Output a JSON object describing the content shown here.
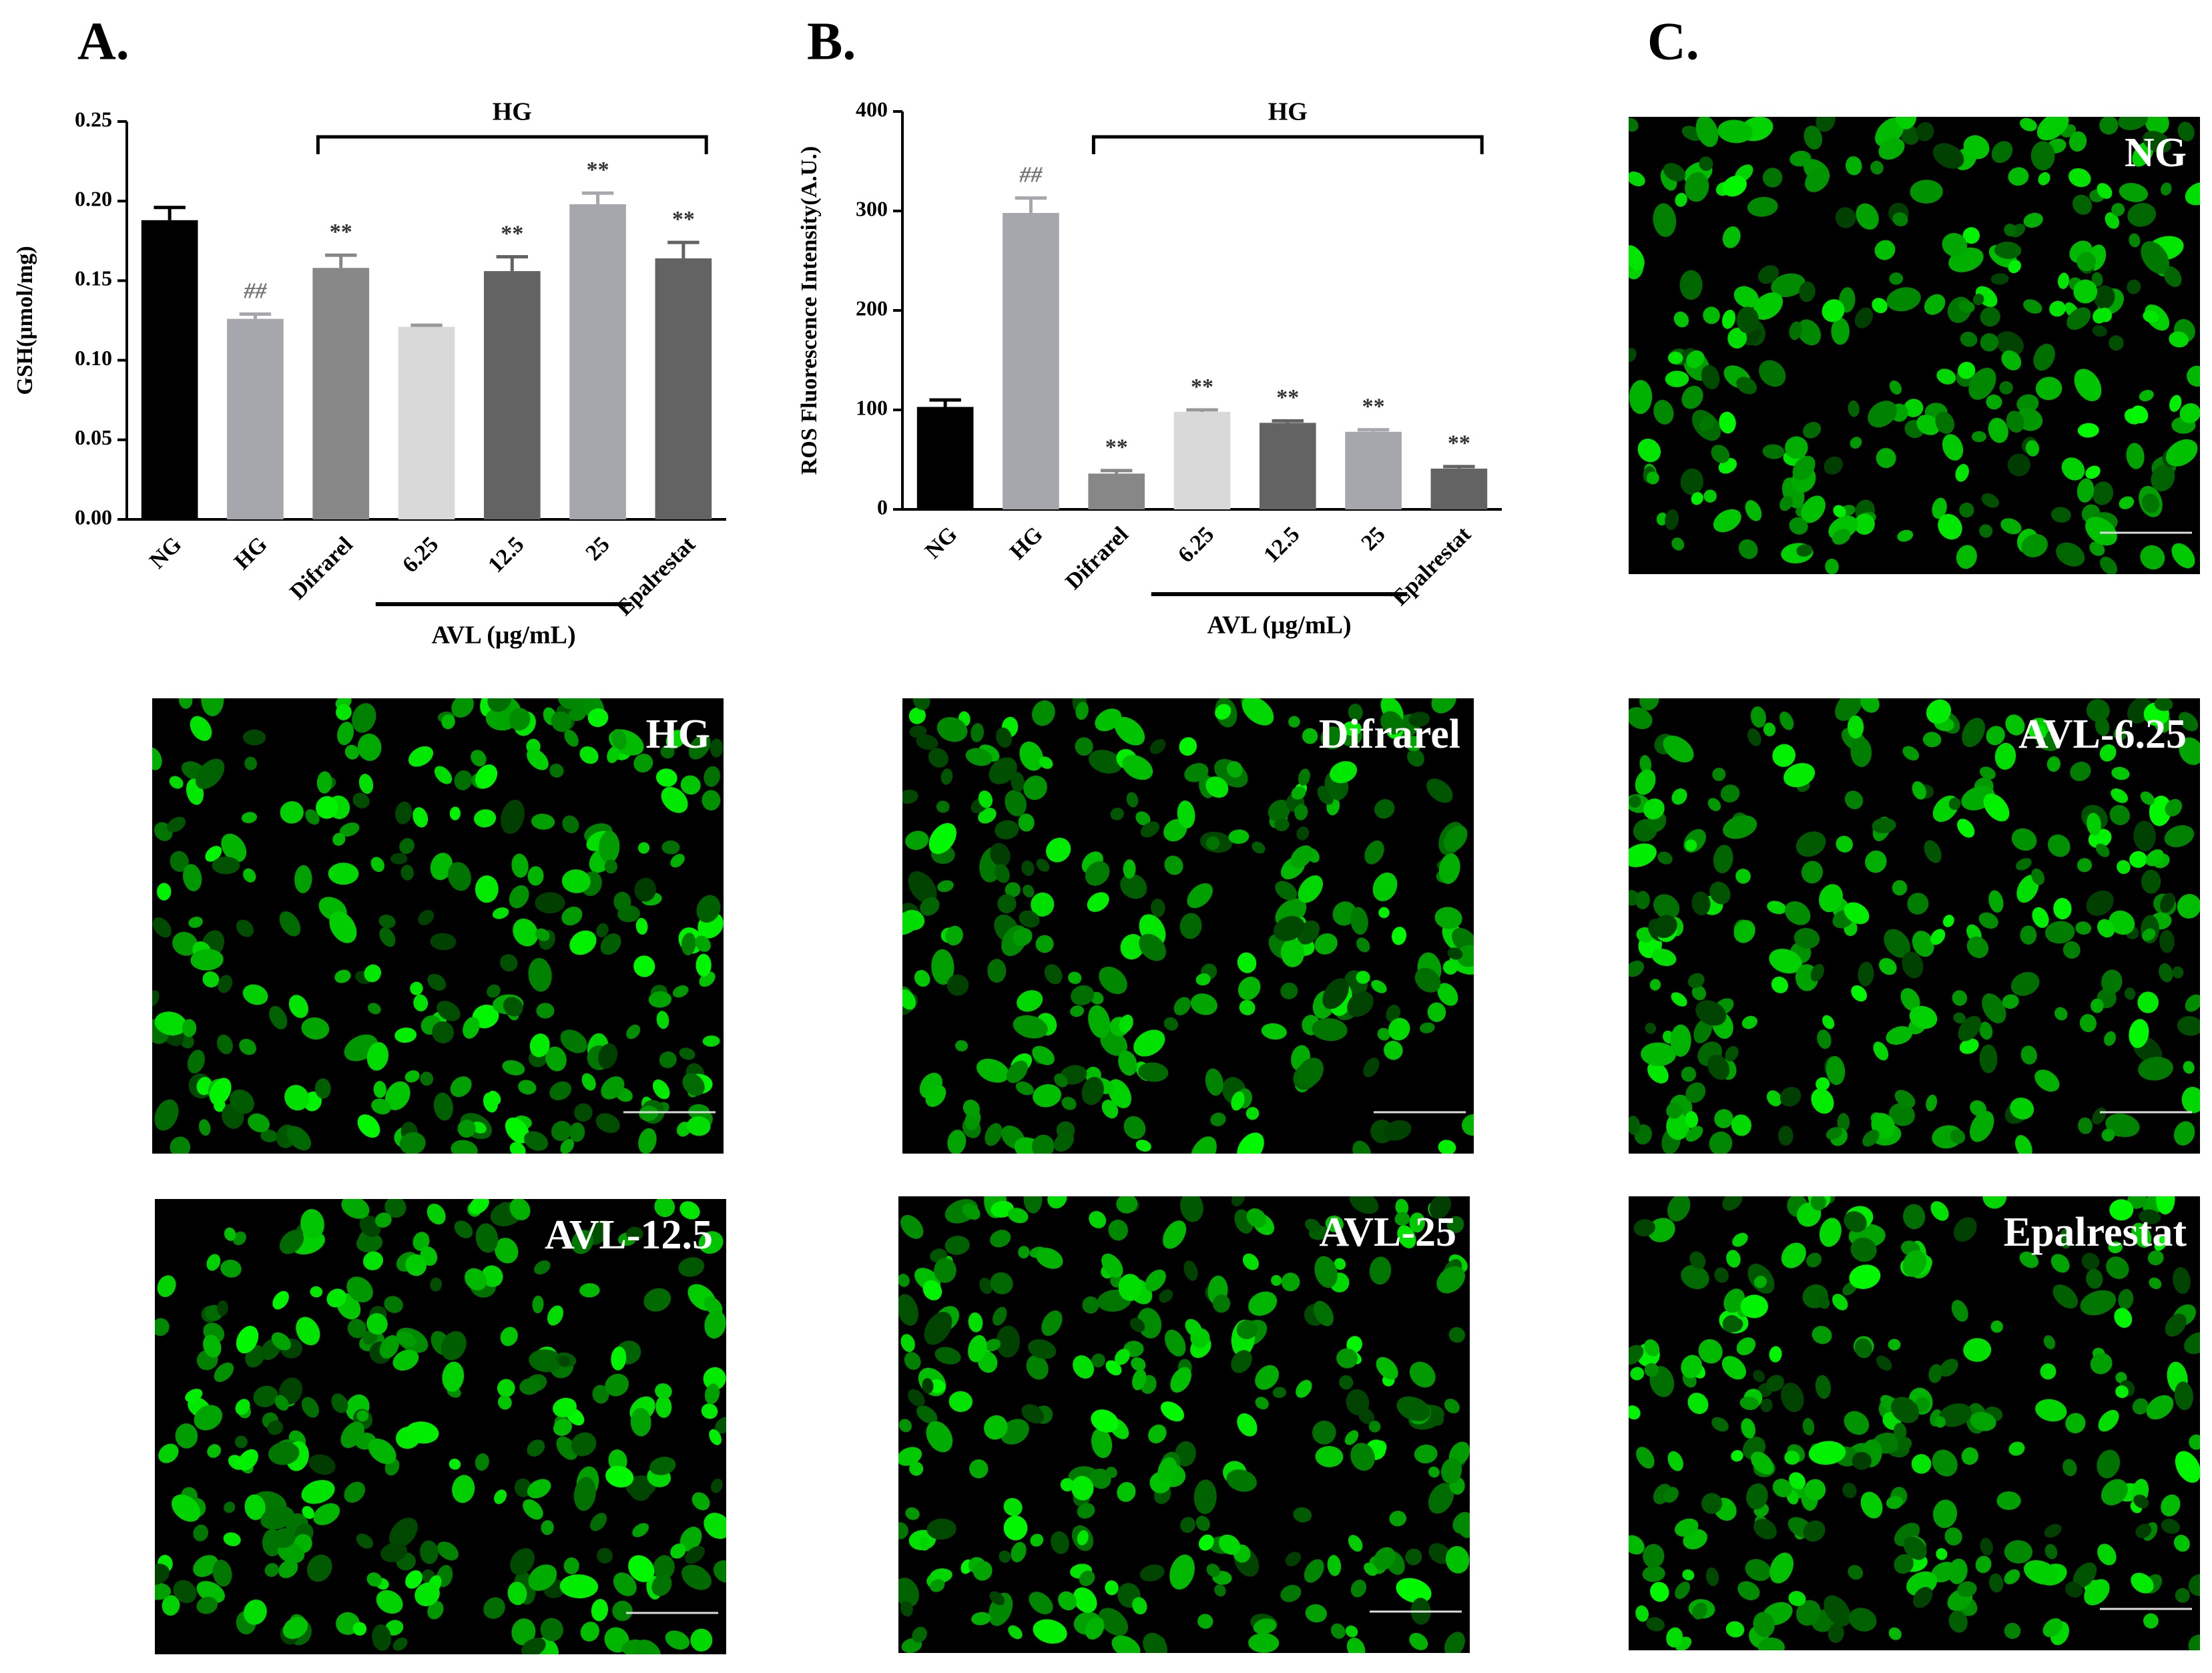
{
  "chart_data": [
    {
      "type": "bar",
      "panel_label": "A.",
      "ylabel": "GSH(μmol/mg)",
      "categories": [
        "NG",
        "HG",
        "Difrarel",
        "6.25",
        "12.5",
        "25",
        "Epalrestat"
      ],
      "values": [
        0.188,
        0.126,
        0.158,
        0.121,
        0.156,
        0.198,
        0.164
      ],
      "errors": [
        0.008,
        0.003,
        0.008,
        0.001,
        0.009,
        0.007,
        0.01
      ],
      "colors": [
        "#000000",
        "#a6a6ad",
        "#878787",
        "#d9d9d9",
        "#636363",
        "#a6a6ad",
        "#636363"
      ],
      "annotations": [
        null,
        "##",
        "**",
        null,
        "**",
        "**",
        "**"
      ],
      "bracket_label": "HG",
      "group_label": "AVL (μg/mL)",
      "ylim": [
        0,
        0.25
      ],
      "yticks": [
        {
          "value": 0,
          "label": "0.00"
        },
        {
          "value": 0.05,
          "label": "0.05"
        },
        {
          "value": 0.1,
          "label": "0.10"
        },
        {
          "value": 0.15,
          "label": "0.15"
        },
        {
          "value": 0.2,
          "label": "0.20"
        },
        {
          "value": 0.25,
          "label": "0.25"
        }
      ]
    },
    {
      "type": "bar",
      "panel_label": "B.",
      "ylabel": "ROS Fluorescence Intensity(A.U.)",
      "categories": [
        "NG",
        "HG",
        "Difrarel",
        "6.25",
        "12.5",
        "25",
        "Epalrestat"
      ],
      "values": [
        103,
        298,
        36,
        98,
        87,
        78,
        41
      ],
      "errors": [
        7,
        15,
        3,
        2,
        2,
        2,
        2
      ],
      "colors": [
        "#000000",
        "#a6a6ad",
        "#878787",
        "#d9d9d9",
        "#636363",
        "#a6a6ad",
        "#636363"
      ],
      "annotations": [
        null,
        "##",
        "**",
        "**",
        "**",
        "**",
        "**"
      ],
      "bracket_label": "HG",
      "group_label": "AVL (μg/mL)",
      "ylim": [
        0,
        400
      ],
      "yticks": [
        0,
        100,
        200,
        300,
        400
      ]
    }
  ],
  "panel_c": {
    "label": "C."
  },
  "images": [
    {
      "label": "NG"
    },
    {
      "label": "HG"
    },
    {
      "label": "Difrarel"
    },
    {
      "label": "AVL-6.25"
    },
    {
      "label": "AVL-12.5"
    },
    {
      "label": "AVL-25"
    },
    {
      "label": "Epalrestat"
    }
  ]
}
